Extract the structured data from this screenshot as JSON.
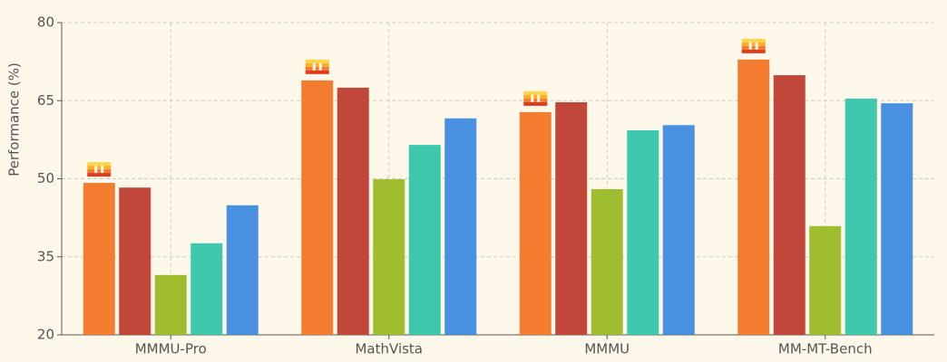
{
  "chart_data": {
    "type": "bar",
    "y_label": "Performance (%)",
    "categories": [
      "MMMU-Pro",
      "MathVista",
      "MMMU",
      "MM-MT-Bench"
    ],
    "series": [
      {
        "color": "#f47c30",
        "values": [
          49.2,
          68.9,
          62.8,
          72.9
        ]
      },
      {
        "color": "#c0473a",
        "values": [
          48.3,
          67.5,
          64.7,
          69.9
        ]
      },
      {
        "color": "#a0bd30",
        "values": [
          31.5,
          49.9,
          48.0,
          40.9
        ]
      },
      {
        "color": "#3ec8ae",
        "values": [
          37.6,
          56.5,
          59.3,
          65.4
        ]
      },
      {
        "color": "#4a90e0",
        "values": [
          44.9,
          61.6,
          60.3,
          64.5
        ]
      }
    ],
    "ylim": [
      20,
      80
    ],
    "yticks": [
      20,
      35,
      50,
      65,
      80
    ],
    "grid": true
  }
}
